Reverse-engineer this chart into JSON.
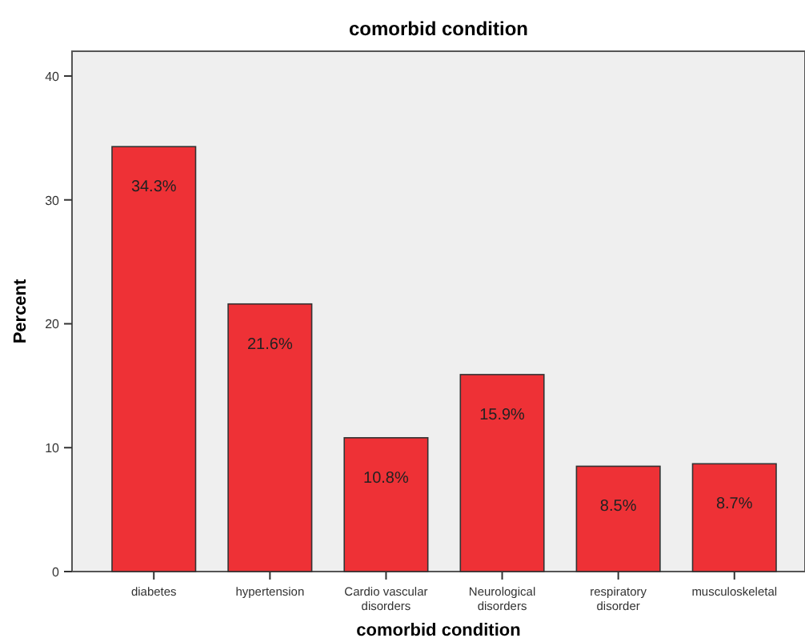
{
  "chart_data": {
    "type": "bar",
    "title": "comorbid condition",
    "xlabel": "comorbid condition",
    "ylabel": "Percent",
    "categories": [
      "diabetes",
      "hypertension",
      "Cardio vascular disorders",
      "Neurological disorders",
      "respiratory disorder",
      "musculoskeletal"
    ],
    "values": [
      34.3,
      21.6,
      10.8,
      15.9,
      8.5,
      8.7
    ],
    "value_labels": [
      "34.3%",
      "21.6%",
      "10.8%",
      "15.9%",
      "8.5%",
      "8.7%"
    ],
    "color": "#ee3136",
    "ylim": [
      0,
      42
    ],
    "yticks": [
      0,
      10,
      20,
      30,
      40
    ],
    "grid": false
  }
}
